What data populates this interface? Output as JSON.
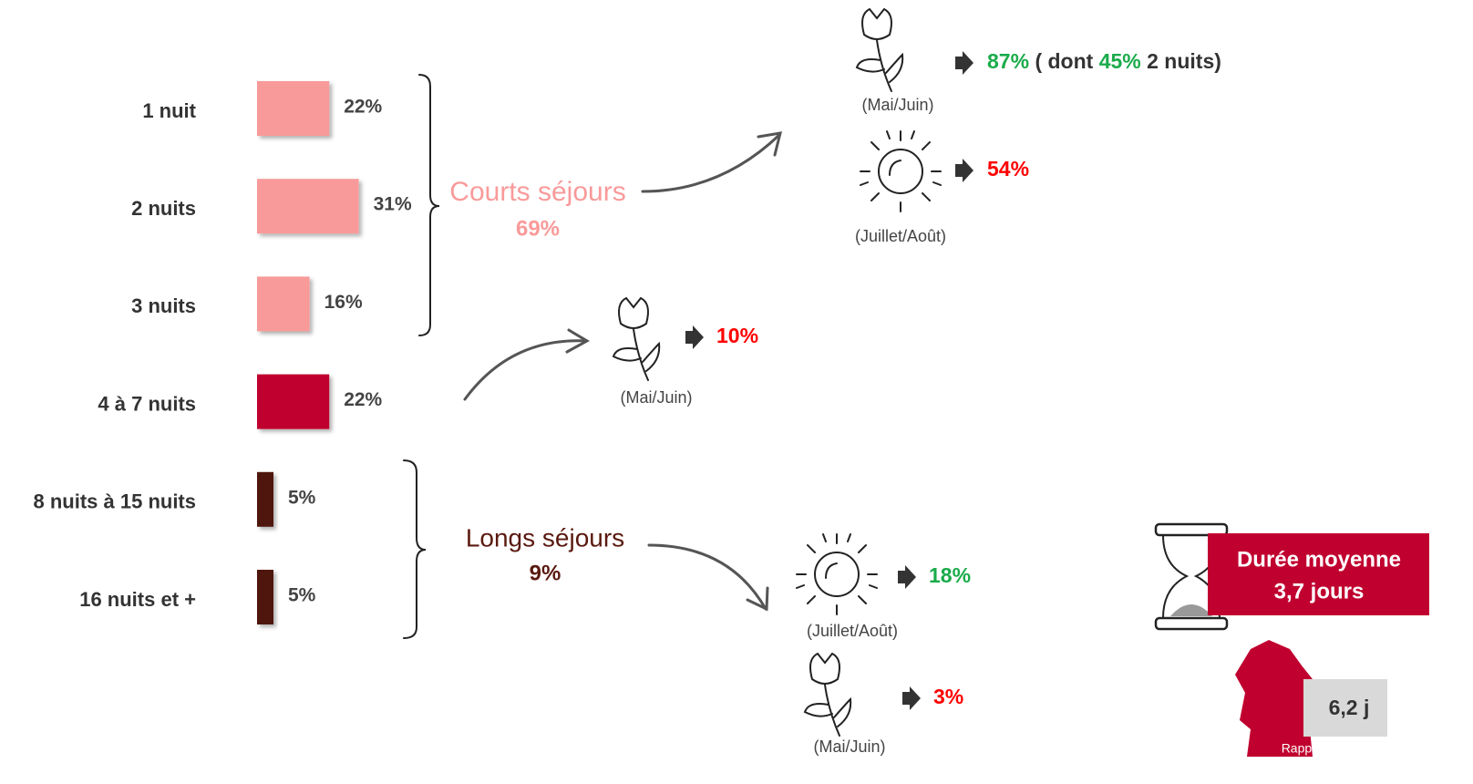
{
  "chart_data": {
    "type": "bar",
    "orientation": "horizontal",
    "categories": [
      "1 nuit",
      "2 nuits",
      "3 nuits",
      "4 à 7 nuits",
      "8 nuits à 15 nuits",
      "16 nuits et +"
    ],
    "values": [
      22,
      31,
      16,
      22,
      5,
      5
    ],
    "value_labels": [
      "22%",
      "31%",
      "16%",
      "22%",
      "5%",
      "5%"
    ],
    "colors": [
      "#f99a9a",
      "#f99a9a",
      "#f99a9a",
      "#c0002f",
      "#4f140f",
      "#4f140f"
    ]
  },
  "courts": {
    "label": "Courts séjours",
    "total": "69%",
    "may_june": {
      "period": "(Mai/Juin)",
      "result": [
        "87%",
        "( dont",
        "45%",
        "2 nuits)"
      ]
    },
    "july_august": {
      "period": "(Juillet/Août)",
      "result": "54%"
    }
  },
  "moyens": {
    "may_june": {
      "period": "(Mai/Juin)",
      "result": "10%"
    }
  },
  "longs": {
    "label": "Longs séjours",
    "total": "9%",
    "july_august": {
      "period": "(Juillet/Août)",
      "result": "18%"
    },
    "may_june": {
      "period": "(Mai/Juin)",
      "result": "3%"
    }
  },
  "average": {
    "title": "Durée moyenne",
    "value": "3,7 jours"
  },
  "region": {
    "value": "6,2 j",
    "label": "Rappel Région"
  }
}
